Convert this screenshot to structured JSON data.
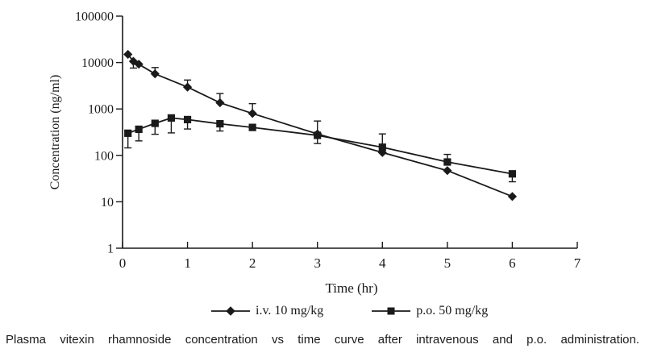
{
  "figure": {
    "caption": "Plasma vitexin rhamnoside concentration vs time curve after intravenous and p.o. administration."
  },
  "colors": {
    "ink": "#1a1a1a",
    "background": "#ffffff"
  },
  "chart_data": {
    "type": "line",
    "title": "",
    "xlabel": "Time (hr)",
    "ylabel": "Concentration (ng/ml)",
    "y_scale": "log",
    "xlim": [
      0,
      7
    ],
    "ylim": [
      1,
      100000
    ],
    "x_ticks": [
      0,
      1,
      2,
      3,
      4,
      5,
      6,
      7
    ],
    "y_ticks": [
      1,
      10,
      100,
      1000,
      10000,
      100000
    ],
    "grid": false,
    "legend_position": "bottom",
    "series": [
      {
        "name": "i.v. 10 mg/kg",
        "marker": "diamond",
        "color": "#1a1a1a",
        "points": [
          {
            "t": 0.083,
            "c": 15000,
            "lo": null,
            "hi": null
          },
          {
            "t": 0.167,
            "c": 10600,
            "lo": 7600,
            "hi": null
          },
          {
            "t": 0.25,
            "c": 9200,
            "lo": null,
            "hi": null
          },
          {
            "t": 0.5,
            "c": 5700,
            "lo": null,
            "hi": 7800
          },
          {
            "t": 1,
            "c": 2950,
            "lo": null,
            "hi": 4200
          },
          {
            "t": 1.5,
            "c": 1360,
            "lo": null,
            "hi": 2150
          },
          {
            "t": 2,
            "c": 800,
            "lo": null,
            "hi": 1300
          },
          {
            "t": 3,
            "c": 290,
            "lo": 180,
            "hi": 550
          },
          {
            "t": 4,
            "c": 115,
            "lo": null,
            "hi": null
          },
          {
            "t": 5,
            "c": 47,
            "lo": null,
            "hi": null
          },
          {
            "t": 6,
            "c": 13,
            "lo": null,
            "hi": null
          }
        ]
      },
      {
        "name": "p.o. 50 mg/kg",
        "marker": "square",
        "color": "#1a1a1a",
        "points": [
          {
            "t": 0.083,
            "c": 300,
            "lo": 145,
            "hi": null
          },
          {
            "t": 0.25,
            "c": 365,
            "lo": 205,
            "hi": null
          },
          {
            "t": 0.5,
            "c": 490,
            "lo": 285,
            "hi": null
          },
          {
            "t": 0.75,
            "c": 640,
            "lo": 305,
            "hi": null
          },
          {
            "t": 1,
            "c": 590,
            "lo": 370,
            "hi": null
          },
          {
            "t": 1.5,
            "c": 480,
            "lo": 335,
            "hi": null
          },
          {
            "t": 2,
            "c": 400,
            "lo": null,
            "hi": null
          },
          {
            "t": 3,
            "c": 270,
            "lo": null,
            "hi": null
          },
          {
            "t": 4,
            "c": 150,
            "lo": null,
            "hi": 290
          },
          {
            "t": 5,
            "c": 72,
            "lo": null,
            "hi": 105
          },
          {
            "t": 6,
            "c": 40,
            "lo": 27,
            "hi": null
          }
        ]
      }
    ]
  }
}
